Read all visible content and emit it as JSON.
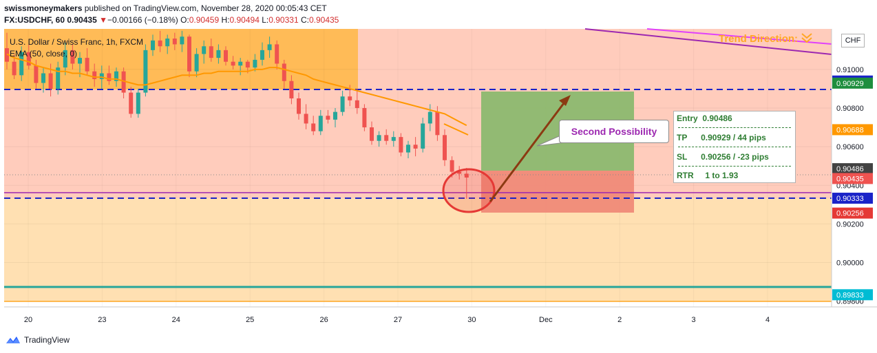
{
  "header": {
    "publisher": "swissmoneymakers",
    "published_text": " published on TradingView.com, November 28, 2020 00:05:43 CET",
    "symbol": "FX:USDCHF, 60",
    "last": "0.90435",
    "change_arrow": "▼",
    "change": "−0.00166 (−0.18%)",
    "o_label": "O:",
    "o_value": "0.90459",
    "h_label": "H:",
    "h_value": "0.90494",
    "l_label": "L:",
    "l_value": "0.90331",
    "c_label": "C:",
    "c_value": "0.90435"
  },
  "legend": {
    "instrument": "U.S. Dollar / Swiss Franc, 1h, FXCM",
    "ema": "EMA (50, close, 0)"
  },
  "annotations": {
    "trend_direction": "Trend Direction:",
    "trend_icon": "double-chevron-down-icon",
    "callout": "Second Possibility",
    "entry": "Entry  0.90486",
    "tp": "TP      0.90929 / 44 pips",
    "sl": "SL      0.90256 / -23 pips",
    "rtr": "RTR     1 to 1.93",
    "currency_badge": "CHF"
  },
  "footer": {
    "brand": "TradingView",
    "logo_icon": "tradingview-logo-icon"
  },
  "colors": {
    "up": "#26a69a",
    "down": "#ef5350",
    "ema": "#ff9800",
    "trend": "#9c27b0",
    "support": "#26a69a",
    "dashed": "#1a23c8",
    "zone_orange": "#ffe0b2",
    "zone_red": "#ffccbc"
  },
  "chart_data": {
    "type": "candlestick",
    "symbol": "USDCHF",
    "timeframe": "1h",
    "x_tick_labels": [
      "20",
      "23",
      "24",
      "25",
      "26",
      "27",
      "30",
      "Dec",
      "2",
      "3",
      "4"
    ],
    "y_tick_labels": [
      "0.91000",
      "0.90800",
      "0.90600",
      "0.90400",
      "0.90200",
      "0.90000",
      "0.89800"
    ],
    "ylim": [
      0.8977,
      0.9121
    ],
    "price_labels": [
      {
        "value": 0.9094,
        "text": "0.90940",
        "color": "#1a23c8"
      },
      {
        "value": 0.90929,
        "text": "0.90929",
        "color": "#1e8e3e"
      },
      {
        "value": 0.90688,
        "text": "0.90688",
        "color": "#ff9800"
      },
      {
        "value": 0.90486,
        "text": "0.90486",
        "color": "#424242"
      },
      {
        "value": 0.90435,
        "text": "0.90435",
        "color": "#ef5350"
      },
      {
        "value": 0.90333,
        "text": "0.90333",
        "color": "#1a23c8"
      },
      {
        "value": 0.90256,
        "text": "0.90256",
        "color": "#e53935"
      },
      {
        "value": 0.89833,
        "text": "0.89833",
        "color": "#00bcd4"
      }
    ],
    "horizontal_levels": [
      {
        "name": "resistance",
        "value": 0.9094,
        "style": "dashed"
      },
      {
        "name": "support",
        "value": 0.90333,
        "style": "dashed"
      },
      {
        "name": "purple-level",
        "value": 0.90355,
        "style": "solid"
      },
      {
        "name": "lower-support",
        "value": 0.89833,
        "style": "solid"
      }
    ],
    "position": {
      "entry": 0.90486,
      "tp": 0.90929,
      "sl": 0.90256,
      "tp_pips": 44,
      "sl_pips": -23,
      "rtr": "1 to 1.93"
    },
    "candles": [
      {
        "o": 0.9111,
        "h": 0.9119,
        "l": 0.91,
        "c": 0.9104
      },
      {
        "o": 0.9104,
        "h": 0.9108,
        "l": 0.9095,
        "c": 0.9097
      },
      {
        "o": 0.9097,
        "h": 0.9112,
        "l": 0.9094,
        "c": 0.9109
      },
      {
        "o": 0.9109,
        "h": 0.9113,
        "l": 0.91,
        "c": 0.9102
      },
      {
        "o": 0.9102,
        "h": 0.9105,
        "l": 0.909,
        "c": 0.9093
      },
      {
        "o": 0.9093,
        "h": 0.9101,
        "l": 0.9088,
        "c": 0.9098
      },
      {
        "o": 0.9098,
        "h": 0.9103,
        "l": 0.9086,
        "c": 0.909
      },
      {
        "o": 0.909,
        "h": 0.9104,
        "l": 0.9087,
        "c": 0.9101
      },
      {
        "o": 0.9101,
        "h": 0.9114,
        "l": 0.9097,
        "c": 0.911
      },
      {
        "o": 0.911,
        "h": 0.9113,
        "l": 0.91,
        "c": 0.9103
      },
      {
        "o": 0.9103,
        "h": 0.9109,
        "l": 0.9096,
        "c": 0.9106
      },
      {
        "o": 0.9106,
        "h": 0.9111,
        "l": 0.9097,
        "c": 0.9099
      },
      {
        "o": 0.9099,
        "h": 0.9103,
        "l": 0.9091,
        "c": 0.9095
      },
      {
        "o": 0.9095,
        "h": 0.9102,
        "l": 0.909,
        "c": 0.9098
      },
      {
        "o": 0.9098,
        "h": 0.9102,
        "l": 0.9092,
        "c": 0.9094
      },
      {
        "o": 0.9094,
        "h": 0.9101,
        "l": 0.9091,
        "c": 0.9099
      },
      {
        "o": 0.9099,
        "h": 0.9101,
        "l": 0.9085,
        "c": 0.9088
      },
      {
        "o": 0.9088,
        "h": 0.9091,
        "l": 0.9075,
        "c": 0.9077
      },
      {
        "o": 0.9077,
        "h": 0.909,
        "l": 0.9075,
        "c": 0.9088
      },
      {
        "o": 0.9088,
        "h": 0.9113,
        "l": 0.9086,
        "c": 0.911
      },
      {
        "o": 0.911,
        "h": 0.9118,
        "l": 0.9107,
        "c": 0.9115
      },
      {
        "o": 0.9115,
        "h": 0.912,
        "l": 0.9109,
        "c": 0.9112
      },
      {
        "o": 0.9112,
        "h": 0.9118,
        "l": 0.9108,
        "c": 0.9116
      },
      {
        "o": 0.9116,
        "h": 0.9119,
        "l": 0.911,
        "c": 0.9113
      },
      {
        "o": 0.9113,
        "h": 0.912,
        "l": 0.9109,
        "c": 0.9117
      },
      {
        "o": 0.9117,
        "h": 0.9118,
        "l": 0.9096,
        "c": 0.9099
      },
      {
        "o": 0.9099,
        "h": 0.9111,
        "l": 0.9096,
        "c": 0.9108
      },
      {
        "o": 0.9108,
        "h": 0.9115,
        "l": 0.9103,
        "c": 0.9112
      },
      {
        "o": 0.9112,
        "h": 0.9116,
        "l": 0.9104,
        "c": 0.9106
      },
      {
        "o": 0.9106,
        "h": 0.9113,
        "l": 0.9103,
        "c": 0.911
      },
      {
        "o": 0.911,
        "h": 0.9112,
        "l": 0.9102,
        "c": 0.9104
      },
      {
        "o": 0.9104,
        "h": 0.9107,
        "l": 0.91,
        "c": 0.9102
      },
      {
        "o": 0.9102,
        "h": 0.9106,
        "l": 0.9097,
        "c": 0.9104
      },
      {
        "o": 0.9104,
        "h": 0.9105,
        "l": 0.9098,
        "c": 0.9101
      },
      {
        "o": 0.9101,
        "h": 0.9108,
        "l": 0.9099,
        "c": 0.9105
      },
      {
        "o": 0.9105,
        "h": 0.9114,
        "l": 0.9102,
        "c": 0.911
      },
      {
        "o": 0.911,
        "h": 0.9117,
        "l": 0.9106,
        "c": 0.9113
      },
      {
        "o": 0.9113,
        "h": 0.9115,
        "l": 0.91,
        "c": 0.9103
      },
      {
        "o": 0.9103,
        "h": 0.9105,
        "l": 0.909,
        "c": 0.9094
      },
      {
        "o": 0.9094,
        "h": 0.9097,
        "l": 0.9082,
        "c": 0.9085
      },
      {
        "o": 0.9085,
        "h": 0.9088,
        "l": 0.9074,
        "c": 0.9077
      },
      {
        "o": 0.9077,
        "h": 0.9082,
        "l": 0.9069,
        "c": 0.9072
      },
      {
        "o": 0.9072,
        "h": 0.9076,
        "l": 0.9066,
        "c": 0.9068
      },
      {
        "o": 0.9068,
        "h": 0.9079,
        "l": 0.9066,
        "c": 0.9076
      },
      {
        "o": 0.9076,
        "h": 0.9079,
        "l": 0.9072,
        "c": 0.9074
      },
      {
        "o": 0.9074,
        "h": 0.908,
        "l": 0.907,
        "c": 0.9078
      },
      {
        "o": 0.9078,
        "h": 0.9089,
        "l": 0.9076,
        "c": 0.9086
      },
      {
        "o": 0.9086,
        "h": 0.9092,
        "l": 0.9081,
        "c": 0.9084
      },
      {
        "o": 0.9084,
        "h": 0.909,
        "l": 0.9077,
        "c": 0.908
      },
      {
        "o": 0.908,
        "h": 0.9082,
        "l": 0.9068,
        "c": 0.907
      },
      {
        "o": 0.907,
        "h": 0.9073,
        "l": 0.9061,
        "c": 0.9063
      },
      {
        "o": 0.9063,
        "h": 0.9068,
        "l": 0.906,
        "c": 0.9066
      },
      {
        "o": 0.9066,
        "h": 0.9069,
        "l": 0.9061,
        "c": 0.9063
      },
      {
        "o": 0.9063,
        "h": 0.9068,
        "l": 0.906,
        "c": 0.9065
      },
      {
        "o": 0.9065,
        "h": 0.9067,
        "l": 0.9055,
        "c": 0.9057
      },
      {
        "o": 0.9057,
        "h": 0.9063,
        "l": 0.9054,
        "c": 0.9061
      },
      {
        "o": 0.9061,
        "h": 0.9065,
        "l": 0.9055,
        "c": 0.9059
      },
      {
        "o": 0.9059,
        "h": 0.9075,
        "l": 0.9057,
        "c": 0.9072
      },
      {
        "o": 0.9072,
        "h": 0.9082,
        "l": 0.9068,
        "c": 0.9078
      },
      {
        "o": 0.9078,
        "h": 0.9081,
        "l": 0.9063,
        "c": 0.9066
      },
      {
        "o": 0.9066,
        "h": 0.9069,
        "l": 0.905,
        "c": 0.9053
      },
      {
        "o": 0.9053,
        "h": 0.9055,
        "l": 0.9044,
        "c": 0.9047
      },
      {
        "o": 0.9047,
        "h": 0.905,
        "l": 0.9043,
        "c": 0.9046
      },
      {
        "o": 0.9046,
        "h": 0.9049,
        "l": 0.9033,
        "c": 0.9044
      }
    ],
    "ema50": [
      0.9108,
      0.9106,
      0.9105,
      0.9104,
      0.9102,
      0.9101,
      0.91,
      0.9099,
      0.9099,
      0.9098,
      0.9098,
      0.9097,
      0.9096,
      0.9096,
      0.9095,
      0.9095,
      0.9094,
      0.9093,
      0.9092,
      0.9092,
      0.9093,
      0.9094,
      0.9095,
      0.9096,
      0.9097,
      0.9097,
      0.9097,
      0.9098,
      0.9098,
      0.9099,
      0.9099,
      0.9099,
      0.9099,
      0.9099,
      0.91,
      0.91,
      0.9101,
      0.9101,
      0.91,
      0.9099,
      0.9098,
      0.9097,
      0.9095,
      0.9094,
      0.9093,
      0.9092,
      0.9091,
      0.909,
      0.9089,
      0.9088,
      0.9087,
      0.9086,
      0.9085,
      0.9084,
      0.9083,
      0.9082,
      0.9081,
      0.908,
      0.9079,
      0.9078,
      0.9077,
      0.9075,
      0.9073,
      0.9071
    ]
  }
}
